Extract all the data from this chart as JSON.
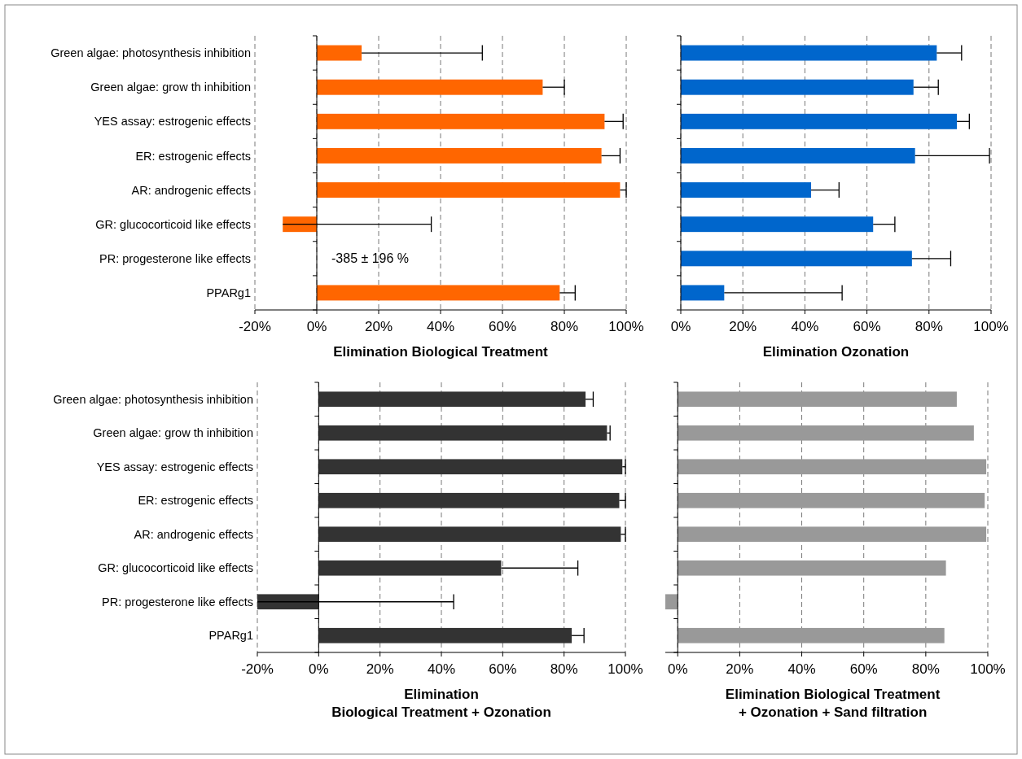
{
  "chart_data": [
    {
      "type": "bar",
      "orientation": "horizontal",
      "xlabel": "Elimination Biological Treatment",
      "categories": [
        "Green algae: photosynthesis inhibition",
        "Green algae: grow th inhibition",
        "YES assay: estrogenic effects",
        "ER: estrogenic effects",
        "AR: androgenic effects",
        "GR: glucocorticoid like effects",
        "PR: progesterone like effects",
        "PPARg1"
      ],
      "values": [
        14.5,
        73,
        93,
        92,
        98,
        -11,
        null,
        78.5
      ],
      "color": "#ff6600",
      "errors": [
        [
          14.5,
          53.5
        ],
        [
          73,
          80
        ],
        [
          93,
          99
        ],
        [
          92,
          98
        ],
        [
          98,
          100
        ],
        [
          -11,
          37
        ],
        null,
        [
          78.5,
          83.5
        ]
      ],
      "xlim": [
        -20,
        100
      ],
      "xticks": [
        {
          "value": -20,
          "label": "-20%"
        },
        {
          "value": 0,
          "label": "0%"
        },
        {
          "value": 20,
          "label": "20%"
        },
        {
          "value": 40,
          "label": "40%"
        },
        {
          "value": 60,
          "label": "60%"
        },
        {
          "value": 80,
          "label": "80%"
        },
        {
          "value": 100,
          "label": "100%"
        }
      ],
      "grid": "x",
      "annotations": [
        "-385 ± 196 %"
      ]
    },
    {
      "type": "bar",
      "orientation": "horizontal",
      "xlabel": "Elimination Ozonation",
      "categories": [
        null,
        null,
        null,
        null,
        null,
        null,
        null,
        null
      ],
      "values": [
        82.5,
        75,
        89,
        75.5,
        42,
        62,
        74.5,
        14
      ],
      "color": "#0066cc",
      "errors": [
        [
          82.5,
          90.5
        ],
        [
          75,
          83
        ],
        [
          89,
          93
        ],
        [
          75.5,
          99.5
        ],
        [
          42,
          51
        ],
        [
          62,
          69
        ],
        [
          74.5,
          87
        ],
        [
          14,
          52
        ]
      ],
      "xlim": [
        0,
        100
      ],
      "xticks": [
        {
          "value": 0,
          "label": "0%"
        },
        {
          "value": 20,
          "label": "20%"
        },
        {
          "value": 40,
          "label": "40%"
        },
        {
          "value": 60,
          "label": "60%"
        },
        {
          "value": 80,
          "label": "80%"
        },
        {
          "value": 100,
          "label": "100%"
        }
      ],
      "grid": "x",
      "tick_labels": "x"
    },
    {
      "type": "bar",
      "orientation": "horizontal",
      "xlabel": "Elimination\nBiological Treatment + Ozonation",
      "categories": [
        "Green algae: photosynthesis inhibition",
        "Green algae: grow th inhibition",
        "YES assay: estrogenic effects",
        "ER: estrogenic effects",
        "AR: androgenic effects",
        "GR: glucocorticoid like effects",
        "PR: progesterone like effects",
        "PPARg1"
      ],
      "values": [
        87,
        94,
        99,
        98,
        98.5,
        59.5,
        -20,
        82.5
      ],
      "color": "#333333",
      "errors": [
        [
          87,
          89.5
        ],
        [
          94,
          95
        ],
        [
          99,
          100
        ],
        [
          98,
          100
        ],
        [
          98.5,
          100
        ],
        [
          59.5,
          84.5
        ],
        [
          -20,
          44
        ],
        [
          82.5,
          86.5
        ]
      ],
      "xlim": [
        -20,
        100
      ],
      "xticks": [
        {
          "value": -20,
          "label": "-20%"
        },
        {
          "value": 0,
          "label": "0%"
        },
        {
          "value": 20,
          "label": "20%"
        },
        {
          "value": 40,
          "label": "40%"
        },
        {
          "value": 60,
          "label": "60%"
        },
        {
          "value": 80,
          "label": "80%"
        },
        {
          "value": 100,
          "label": "100%"
        }
      ],
      "grid": "x"
    },
    {
      "type": "bar",
      "orientation": "horizontal",
      "xlabel": "Elimination Biological Treatment\n+ Ozonation + Sand filtration",
      "categories": [
        null,
        null,
        null,
        null,
        null,
        null,
        null,
        null
      ],
      "values": [
        90,
        95.5,
        99.5,
        99,
        99.5,
        86.5,
        -4,
        86
      ],
      "color": "#999999",
      "xlim": [
        -4,
        100
      ],
      "xticks": [
        {
          "value": 0,
          "label": "0%"
        },
        {
          "value": 20,
          "label": "20%"
        },
        {
          "value": 40,
          "label": "40%"
        },
        {
          "value": 60,
          "label": "60%"
        },
        {
          "value": 80,
          "label": "80%"
        },
        {
          "value": 100,
          "label": "100%"
        }
      ],
      "grid": "x",
      "tick_labels": "x"
    }
  ]
}
